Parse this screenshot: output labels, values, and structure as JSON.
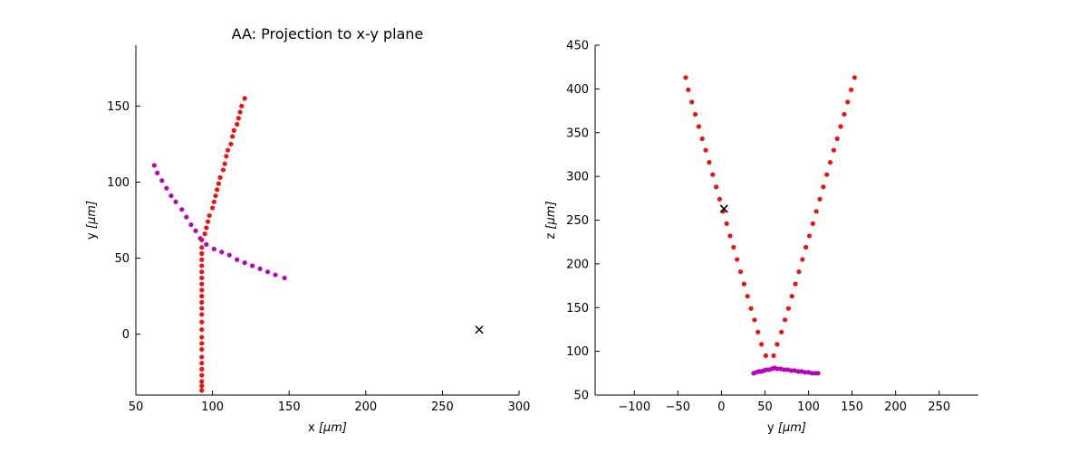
{
  "chart_data": [
    {
      "type": "scatter",
      "title": "AA: Projection to x-y plane",
      "xlabel": "x",
      "xunit": "[μm]",
      "ylabel": "y",
      "yunit": "[μm]",
      "xlim": [
        50,
        300
      ],
      "ylim": [
        -40,
        190
      ],
      "xticks": [
        50,
        100,
        150,
        200,
        250,
        300
      ],
      "yticks": [
        0,
        50,
        100,
        150
      ],
      "series": [
        {
          "color": "#ee1111",
          "marker": "dot",
          "points": [
            [
              93,
              -37
            ],
            [
              93,
              -34
            ],
            [
              93,
              -31
            ],
            [
              93,
              -27
            ],
            [
              93,
              -23
            ],
            [
              93,
              -19
            ],
            [
              93,
              -15
            ],
            [
              93,
              -10
            ],
            [
              93,
              -6
            ],
            [
              93,
              -2
            ],
            [
              93,
              3
            ],
            [
              93,
              8
            ],
            [
              93,
              13
            ],
            [
              93,
              17
            ],
            [
              93,
              21
            ],
            [
              93,
              25
            ],
            [
              93,
              29
            ],
            [
              93,
              33
            ],
            [
              93,
              37
            ],
            [
              93,
              41
            ],
            [
              93,
              45
            ],
            [
              93,
              49
            ],
            [
              93,
              53
            ],
            [
              93,
              57
            ],
            [
              93,
              62
            ],
            [
              95,
              66
            ],
            [
              96,
              70
            ],
            [
              97,
              74
            ],
            [
              98,
              78
            ],
            [
              100,
              83
            ],
            [
              101,
              87
            ],
            [
              102,
              91
            ],
            [
              103,
              95
            ],
            [
              104,
              99
            ],
            [
              105,
              103
            ],
            [
              107,
              108
            ],
            [
              108,
              112
            ],
            [
              109,
              117
            ],
            [
              110,
              121
            ],
            [
              112,
              125
            ],
            [
              113,
              130
            ],
            [
              114,
              134
            ],
            [
              116,
              138
            ],
            [
              117,
              142
            ],
            [
              118,
              146
            ],
            [
              119,
              150
            ],
            [
              121,
              155
            ]
          ]
        },
        {
          "color": "#bb00bb",
          "marker": "dot",
          "points": [
            [
              62,
              111
            ],
            [
              64,
              106
            ],
            [
              67,
              101
            ],
            [
              70,
              96
            ],
            [
              73,
              91
            ],
            [
              76,
              87
            ],
            [
              80,
              82
            ],
            [
              83,
              77
            ],
            [
              86,
              72
            ],
            [
              89,
              68
            ],
            [
              92,
              63
            ],
            [
              96,
              59
            ],
            [
              101,
              56
            ],
            [
              106,
              54
            ],
            [
              111,
              52
            ],
            [
              116,
              49
            ],
            [
              121,
              47
            ],
            [
              126,
              45
            ],
            [
              131,
              43
            ],
            [
              136,
              41
            ],
            [
              141,
              39
            ],
            [
              147,
              37
            ]
          ]
        },
        {
          "color": "#000000",
          "marker": "x",
          "points": [
            [
              274,
              3
            ]
          ]
        }
      ]
    },
    {
      "type": "scatter",
      "title": "",
      "xlabel": "y",
      "xunit": "[μm]",
      "ylabel": "z",
      "yunit": "[μm]",
      "xlim": [
        -145,
        295
      ],
      "ylim": [
        50,
        450
      ],
      "xticks": [
        -100,
        -50,
        0,
        50,
        100,
        150,
        200,
        250
      ],
      "xtick_labels": [
        "−100",
        "−50",
        "0",
        "50",
        "100",
        "150",
        "200",
        "250"
      ],
      "yticks": [
        50,
        100,
        150,
        200,
        250,
        300,
        350,
        400,
        450
      ],
      "series": [
        {
          "color": "#ee1111",
          "marker": "dot",
          "points": [
            [
              -41,
              413
            ],
            [
              -38,
              399
            ],
            [
              -34,
              385
            ],
            [
              -30,
              371
            ],
            [
              -26,
              357
            ],
            [
              -22,
              343
            ],
            [
              -18,
              330
            ],
            [
              -14,
              316
            ],
            [
              -10,
              302
            ],
            [
              -6,
              288
            ],
            [
              -2,
              274
            ],
            [
              2,
              260
            ],
            [
              6,
              246
            ],
            [
              10,
              232
            ],
            [
              14,
              219
            ],
            [
              18,
              205
            ],
            [
              22,
              191
            ],
            [
              26,
              177
            ],
            [
              30,
              163
            ],
            [
              34,
              149
            ],
            [
              38,
              136
            ],
            [
              42,
              122
            ],
            [
              46,
              108
            ],
            [
              51,
              95
            ],
            [
              60,
              95
            ],
            [
              64,
              108
            ],
            [
              69,
              122
            ],
            [
              73,
              136
            ],
            [
              77,
              149
            ],
            [
              81,
              163
            ],
            [
              85,
              177
            ],
            [
              89,
              191
            ],
            [
              93,
              205
            ],
            [
              97,
              219
            ],
            [
              101,
              232
            ],
            [
              105,
              246
            ],
            [
              109,
              260
            ],
            [
              113,
              274
            ],
            [
              117,
              288
            ],
            [
              121,
              302
            ],
            [
              125,
              316
            ],
            [
              129,
              330
            ],
            [
              133,
              343
            ],
            [
              137,
              357
            ],
            [
              141,
              371
            ],
            [
              145,
              385
            ],
            [
              149,
              399
            ],
            [
              153,
              413
            ]
          ]
        },
        {
          "color": "#bb00bb",
          "marker": "dot",
          "points": [
            [
              37,
              75
            ],
            [
              40,
              76
            ],
            [
              43,
              77
            ],
            [
              46,
              77
            ],
            [
              49,
              78
            ],
            [
              52,
              79
            ],
            [
              55,
              79
            ],
            [
              58,
              80
            ],
            [
              61,
              81
            ],
            [
              64,
              80
            ],
            [
              68,
              80
            ],
            [
              72,
              79
            ],
            [
              76,
              79
            ],
            [
              80,
              78
            ],
            [
              84,
              78
            ],
            [
              88,
              77
            ],
            [
              92,
              77
            ],
            [
              96,
              76
            ],
            [
              100,
              76
            ],
            [
              104,
              75
            ],
            [
              108,
              75
            ],
            [
              111,
              75
            ]
          ]
        },
        {
          "color": "#000000",
          "marker": "x",
          "points": [
            [
              3,
              263
            ]
          ]
        }
      ]
    }
  ]
}
